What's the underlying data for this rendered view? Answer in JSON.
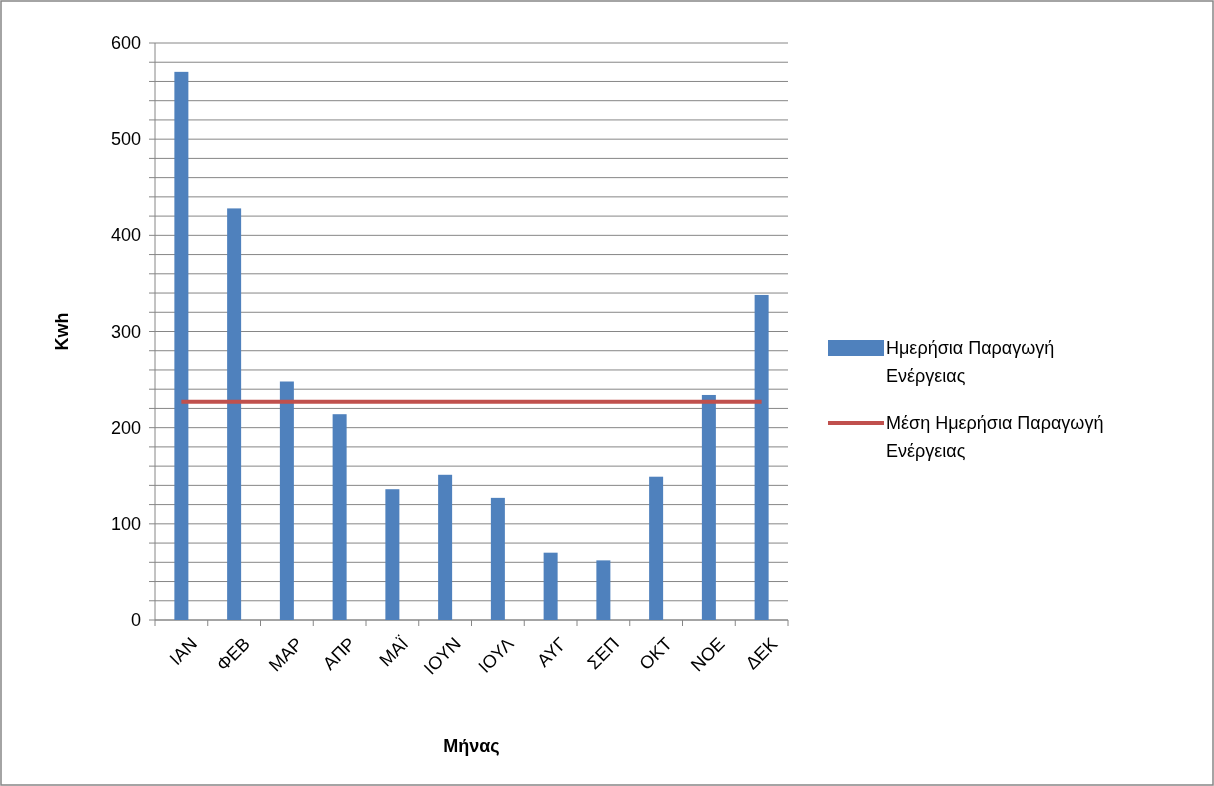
{
  "chart_data": {
    "type": "bar",
    "xlabel": "Μήνας",
    "ylabel": "Kwh",
    "categories": [
      "ΙΑΝ",
      "ΦΕΒ",
      "ΜΑΡ",
      "ΑΠΡ",
      "ΜΑΪ",
      "ΙΟΥΝ",
      "ΙΟΥΛ",
      "ΑΥΓ",
      "ΣΕΠ",
      "ΟΚΤ",
      "ΝΟΕ",
      "ΔΕΚ"
    ],
    "series": [
      {
        "name": "Ημερήσια Παραγωγή Ενέργειας",
        "color": "#4f81bd",
        "values": [
          570,
          428,
          248,
          214,
          136,
          151,
          127,
          70,
          62,
          149,
          234,
          338
        ]
      },
      {
        "name": "Μέση Ημερήσια Παραγωγή Ενέργειας",
        "type": "line",
        "color": "#c0504d",
        "values": [
          227,
          227,
          227,
          227,
          227,
          227,
          227,
          227,
          227,
          227,
          227,
          227
        ]
      }
    ],
    "ylim": [
      0,
      600
    ],
    "yticks": [
      0,
      {
        "value": 20,
        "label": null
      },
      {
        "value": 40,
        "label": null
      },
      {
        "value": 60,
        "label": null
      },
      {
        "value": 80,
        "label": null
      },
      100,
      {
        "value": 120,
        "label": null
      },
      {
        "value": 140,
        "label": null
      },
      {
        "value": 160,
        "label": null
      },
      {
        "value": 180,
        "label": null
      },
      200,
      {
        "value": 220,
        "label": null
      },
      {
        "value": 240,
        "label": null
      },
      {
        "value": 260,
        "label": null
      },
      {
        "value": 280,
        "label": null
      },
      300,
      {
        "value": 320,
        "label": null
      },
      {
        "value": 340,
        "label": null
      },
      {
        "value": 360,
        "label": null
      },
      {
        "value": 380,
        "label": null
      },
      400,
      {
        "value": 420,
        "label": null
      },
      {
        "value": 440,
        "label": null
      },
      {
        "value": 460,
        "label": null
      },
      {
        "value": 480,
        "label": null
      },
      500,
      {
        "value": 520,
        "label": null
      },
      {
        "value": 540,
        "label": null
      },
      {
        "value": 560,
        "label": null
      },
      {
        "value": 580,
        "label": null
      },
      600
    ],
    "grid": true,
    "legend": "right"
  }
}
